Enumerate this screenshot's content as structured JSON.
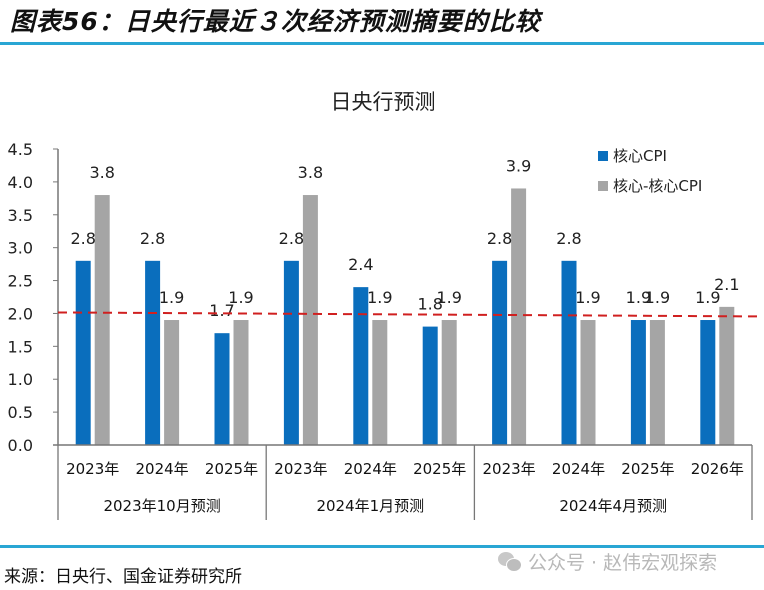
{
  "figure": {
    "title": "图表56：日央行最近３次经济预测摘要的比较",
    "source": "来源：日央行、国金证券研究所",
    "watermark": "公众号 · 赵伟宏观探索"
  },
  "colors": {
    "accent_rule": "#29a6d4",
    "core_cpi": "#0a6ebd",
    "core_core_cpi": "#a5a5a5",
    "target_line": "#d02020"
  },
  "chart_data": {
    "type": "bar",
    "title": "日央行预测",
    "xlabel": "",
    "ylabel": "",
    "ylim": [
      0,
      4.5
    ],
    "yticks": [
      "0.0",
      "0.5",
      "1.0",
      "1.5",
      "2.0",
      "2.5",
      "3.0",
      "3.5",
      "4.0",
      "4.5"
    ],
    "ytick_values": [
      0,
      0.5,
      1.0,
      1.5,
      2.0,
      2.5,
      3.0,
      3.5,
      4.0,
      4.5
    ],
    "grid": false,
    "legend_position": "top-right",
    "groups": [
      {
        "label": "2023年10月预测",
        "categories": [
          "2023年",
          "2024年",
          "2025年"
        ]
      },
      {
        "label": "2024年1月预测",
        "categories": [
          "2023年",
          "2024年",
          "2025年"
        ]
      },
      {
        "label": "2024年4月预测",
        "categories": [
          "2023年",
          "2024年",
          "2025年",
          "2026年"
        ]
      }
    ],
    "categories": [
      "2023年",
      "2024年",
      "2025年",
      "2023年",
      "2024年",
      "2025年",
      "2023年",
      "2024年",
      "2025年",
      "2026年"
    ],
    "series": [
      {
        "name": "核心CPI",
        "values": [
          2.8,
          2.8,
          1.7,
          2.8,
          2.4,
          1.8,
          2.8,
          2.8,
          1.9,
          1.9
        ],
        "labels": [
          "2.8",
          "2.8",
          "1.7",
          "2.8",
          "2.4",
          "1.8",
          "2.8",
          "2.8",
          "1.9",
          "1.9"
        ]
      },
      {
        "name": "核心-核心CPI",
        "values": [
          3.8,
          1.9,
          1.9,
          3.8,
          1.9,
          1.9,
          3.9,
          1.9,
          1.9,
          2.1
        ],
        "labels": [
          "3.8",
          "1.9",
          "1.9",
          "3.8",
          "1.9",
          "1.9",
          "3.9",
          "1.9",
          "1.9",
          "2.1"
        ]
      }
    ],
    "reference_line": {
      "value": 2.0,
      "style": "dashed"
    }
  }
}
